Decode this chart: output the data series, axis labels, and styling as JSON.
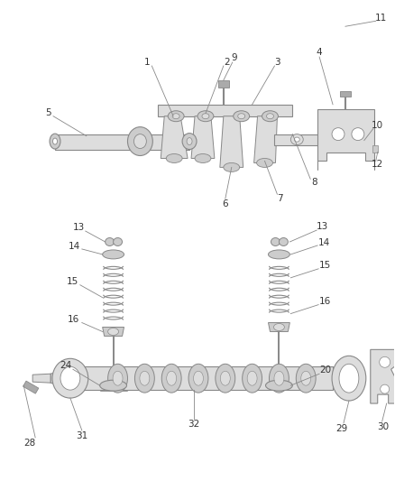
{
  "bg_color": "#ffffff",
  "line_color": "#888888",
  "dark_line": "#555555",
  "label_color": "#333333",
  "label_fontsize": 7.5,
  "leader_color": "#888888"
}
